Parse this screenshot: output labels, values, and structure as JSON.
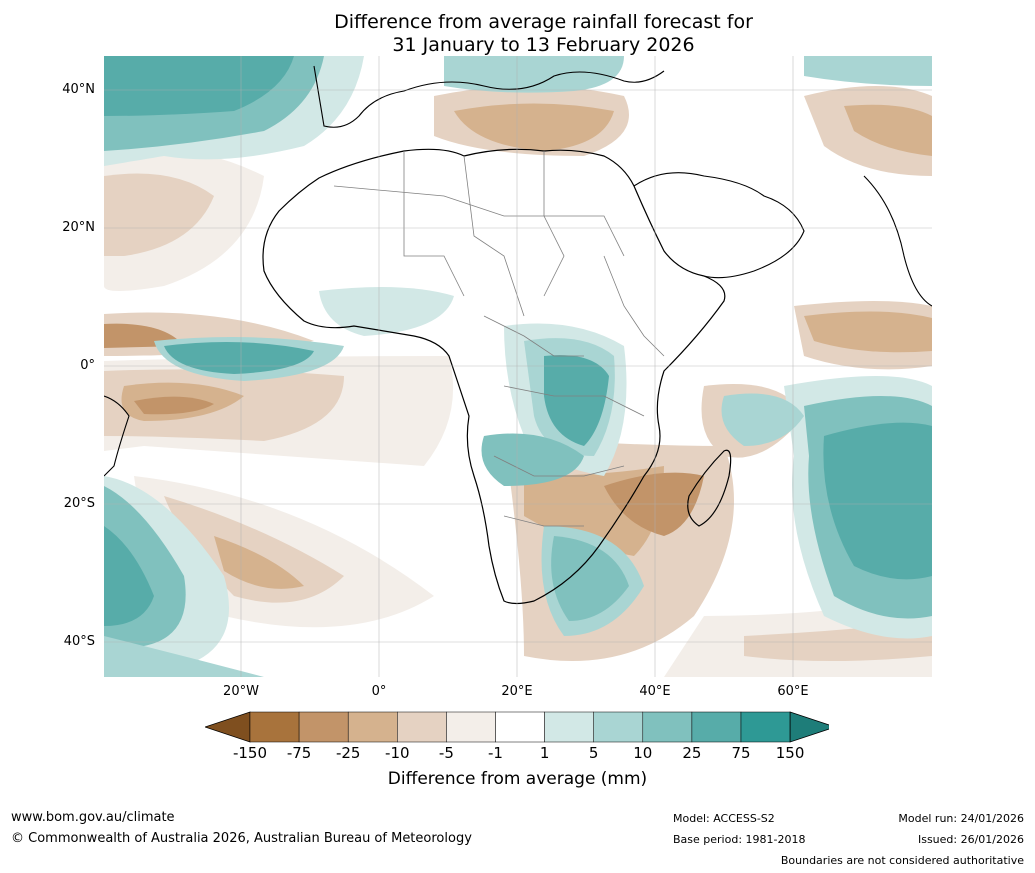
{
  "title": {
    "line1": "Difference from average rainfall forecast for",
    "line2": "31 January to 13 February 2026"
  },
  "map": {
    "region": "Africa and surrounding oceans",
    "lat_labels": [
      "40°N",
      "20°N",
      "0°",
      "20°S",
      "40°S"
    ],
    "lon_labels": [
      "20°W",
      "0°",
      "20°E",
      "40°E",
      "60°E"
    ]
  },
  "legend": {
    "ticks": [
      "-150",
      "-75",
      "-25",
      "-10",
      "-5",
      "-1",
      "1",
      "5",
      "10",
      "25",
      "75",
      "150"
    ],
    "colors": [
      "#7f4f1f",
      "#a8733c",
      "#c29469",
      "#d5b28e",
      "#e5d2c2",
      "#f3eee9",
      "#ffffff",
      "#d2e8e6",
      "#a9d5d3",
      "#80c1be",
      "#57aca9",
      "#2e9995",
      "#1e7d79"
    ],
    "label": "Difference from average (mm)"
  },
  "footer": {
    "url": "www.bom.gov.au/climate",
    "copyright": "© Commonwealth of Australia 2026, Australian Bureau of Meteorology",
    "model": "Model: ACCESS-S2",
    "base_period": "Base period: 1981-2018",
    "model_run": "Model run: 24/01/2026",
    "issued": "Issued: 26/01/2026",
    "disclaimer": "Boundaries are not considered authoritative"
  }
}
